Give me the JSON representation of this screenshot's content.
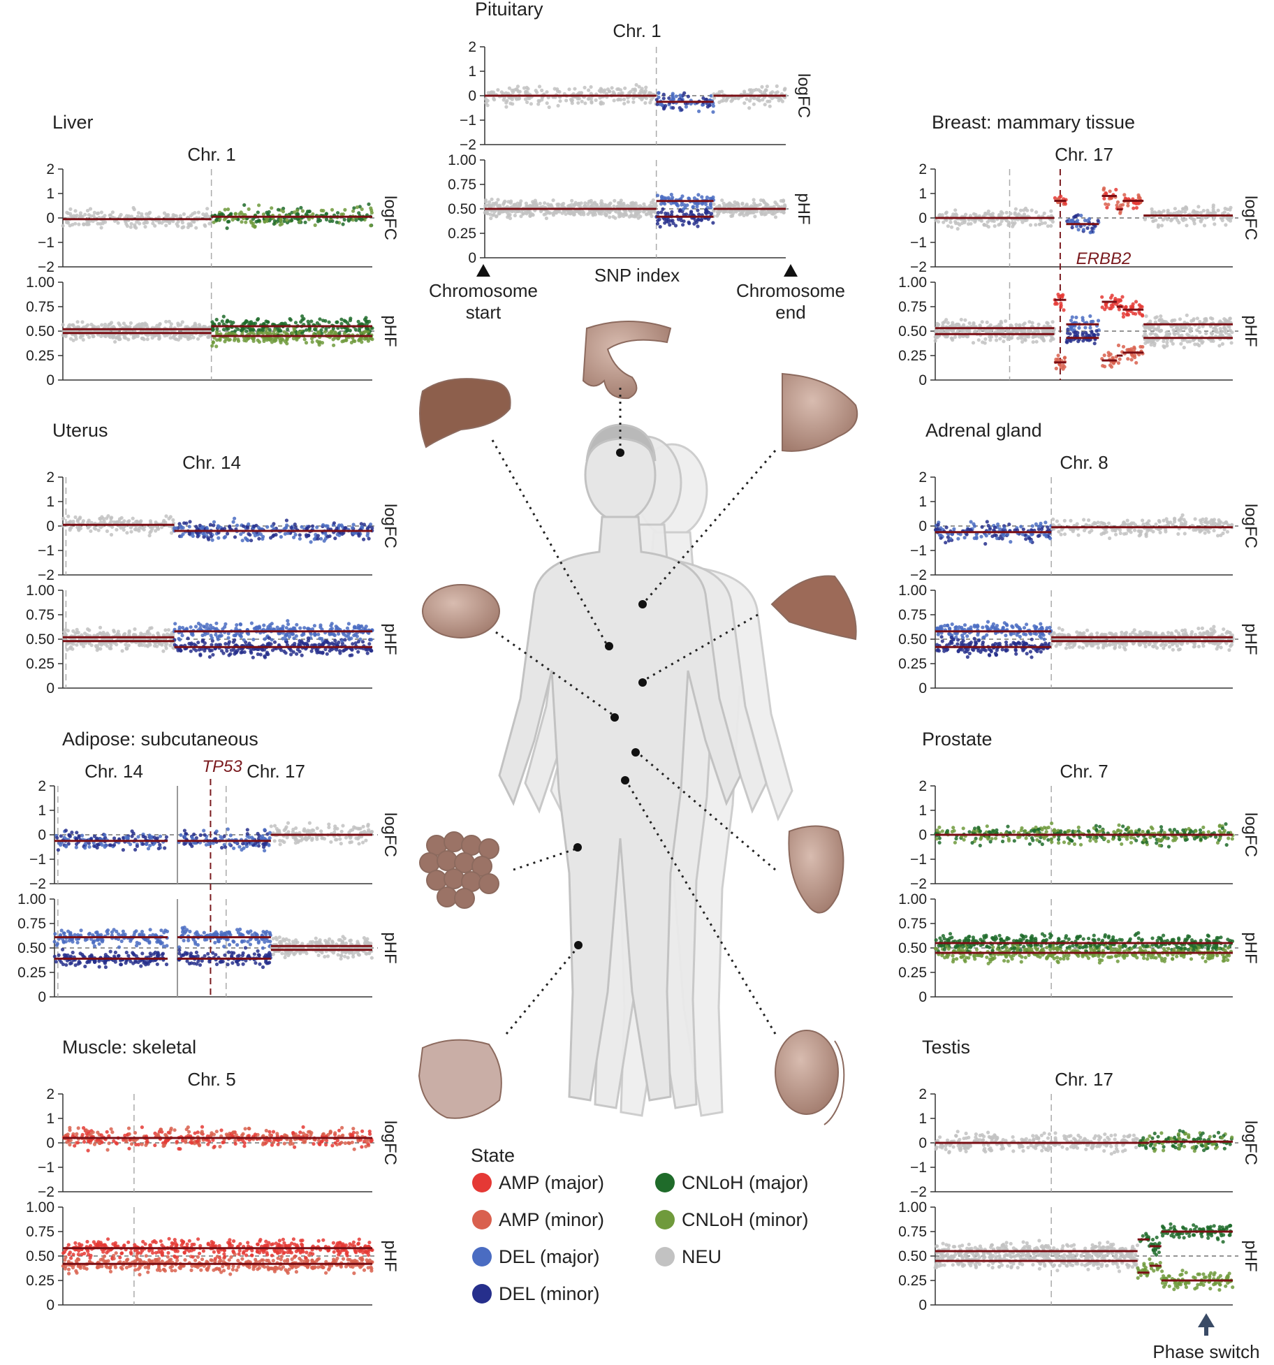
{
  "colors": {
    "AMP_major": "#e53935",
    "AMP_minor": "#d9604e",
    "DEL_major": "#4a6cc2",
    "DEL_minor": "#262f8c",
    "CNLoH_major": "#1f6b2a",
    "CNLoH_minor": "#6f9a3c",
    "NEU": "#c2c2c2",
    "segment": "#7a0e14",
    "gene": "#7a1a1e"
  },
  "legend": {
    "title": "State",
    "items": [
      {
        "label": "AMP (major)",
        "color": "#e53935"
      },
      {
        "label": "CNLoH (major)",
        "color": "#1f6b2a"
      },
      {
        "label": "AMP (minor)",
        "color": "#d9604e"
      },
      {
        "label": "CNLoH (minor)",
        "color": "#6f9a3c"
      },
      {
        "label": "DEL (major)",
        "color": "#4a6cc2"
      },
      {
        "label": "NEU",
        "color": "#c2c2c2"
      },
      {
        "label": "DEL (minor)",
        "color": "#262f8c"
      }
    ]
  },
  "annotations": {
    "snp_index": "SNP index",
    "chromosome_start": "Chromosome start",
    "chromosome_end": "Chromosome end",
    "phase_switch": "Phase switch"
  },
  "axes": {
    "logfc_label": "logFC",
    "phf_label": "pHF",
    "logfc_ticks": [
      "2",
      "1",
      "0",
      "−1",
      "−2"
    ],
    "phf_ticks": [
      "1.00",
      "0.75",
      "0.50",
      "0.25",
      "0"
    ]
  },
  "chart_data": [
    {
      "type": "scatter",
      "title": "Pituitary",
      "chromosomes": [
        "Chr. 1"
      ],
      "segments": [
        {
          "state": "NEU",
          "start": 0,
          "end": 0.57,
          "logFC": 0,
          "pHF": [
            0.5,
            0.5
          ]
        },
        {
          "state": "DEL",
          "start": 0.57,
          "end": 0.76,
          "logFC": -0.25,
          "pHF": [
            0.58,
            0.42
          ]
        },
        {
          "state": "NEU",
          "start": 0.76,
          "end": 1,
          "logFC": 0,
          "pHF": [
            0.5,
            0.5
          ]
        }
      ]
    },
    {
      "type": "scatter",
      "title": "Liver",
      "chromosomes": [
        "Chr. 1"
      ],
      "segments": [
        {
          "state": "NEU",
          "start": 0,
          "end": 0.48,
          "logFC": -0.05,
          "pHF": [
            0.52,
            0.48
          ]
        },
        {
          "state": "CNLoH",
          "start": 0.48,
          "end": 1,
          "logFC": 0.05,
          "pHF": [
            0.55,
            0.45
          ]
        }
      ]
    },
    {
      "type": "scatter",
      "title": "Breast: mammary tissue",
      "chromosomes": [
        "Chr. 17"
      ],
      "gene": "ERBB2",
      "segments": [
        {
          "state": "NEU",
          "start": 0,
          "end": 0.4,
          "logFC": 0,
          "pHF": [
            0.53,
            0.47
          ]
        },
        {
          "state": "AMP",
          "start": 0.4,
          "end": 0.44,
          "logFC": 0.7,
          "pHF": [
            0.82,
            0.18
          ]
        },
        {
          "state": "DEL",
          "start": 0.44,
          "end": 0.55,
          "logFC": -0.25,
          "pHF": [
            0.57,
            0.43
          ]
        },
        {
          "state": "AMP",
          "start": 0.56,
          "end": 0.61,
          "logFC": 0.9,
          "pHF": [
            0.8,
            0.2
          ]
        },
        {
          "state": "AMP",
          "start": 0.61,
          "end": 0.63,
          "logFC": 0.35,
          "pHF": [
            0.75,
            0.25
          ]
        },
        {
          "state": "AMP",
          "start": 0.63,
          "end": 0.7,
          "logFC": 0.7,
          "pHF": [
            0.72,
            0.28
          ]
        },
        {
          "state": "NEU",
          "start": 0.7,
          "end": 1,
          "logFC": 0.1,
          "pHF": [
            0.57,
            0.43
          ]
        }
      ]
    },
    {
      "type": "scatter",
      "title": "Uterus",
      "chromosomes": [
        "Chr. 14"
      ],
      "segments": [
        {
          "state": "NEU",
          "start": 0,
          "end": 0.36,
          "logFC": 0.05,
          "pHF": [
            0.52,
            0.48
          ]
        },
        {
          "state": "DEL",
          "start": 0.36,
          "end": 1,
          "logFC": -0.2,
          "pHF": [
            0.58,
            0.42
          ]
        }
      ]
    },
    {
      "type": "scatter",
      "title": "Adrenal gland",
      "chromosomes": [
        "Chr. 8"
      ],
      "segments": [
        {
          "state": "DEL",
          "start": 0,
          "end": 0.39,
          "logFC": -0.25,
          "pHF": [
            0.58,
            0.42
          ]
        },
        {
          "state": "NEU",
          "start": 0.39,
          "end": 1,
          "logFC": -0.05,
          "pHF": [
            0.52,
            0.48
          ]
        }
      ]
    },
    {
      "type": "scatter",
      "title": "Adipose: subcutaneous",
      "chromosomes": [
        "Chr. 14",
        "Chr. 17"
      ],
      "gene": "TP53",
      "segments": [
        {
          "state": "DEL",
          "chromosome": "Chr. 14",
          "start": 0,
          "end": 1,
          "logFC": -0.25,
          "pHF": [
            0.61,
            0.39
          ]
        },
        {
          "state": "DEL",
          "chromosome": "Chr. 17",
          "start": 0,
          "end": 0.48,
          "logFC": -0.25,
          "pHF": [
            0.61,
            0.39
          ]
        },
        {
          "state": "NEU",
          "chromosome": "Chr. 17",
          "start": 0.48,
          "end": 1,
          "logFC": 0,
          "pHF": [
            0.52,
            0.48
          ]
        }
      ]
    },
    {
      "type": "scatter",
      "title": "Prostate",
      "chromosomes": [
        "Chr. 7"
      ],
      "segments": [
        {
          "state": "CNLoH",
          "start": 0,
          "end": 1,
          "logFC": 0,
          "pHF": [
            0.55,
            0.45
          ]
        }
      ]
    },
    {
      "type": "scatter",
      "title": "Muscle: skeletal",
      "chromosomes": [
        "Chr. 5"
      ],
      "segments": [
        {
          "state": "AMP",
          "start": 0,
          "end": 1,
          "logFC": 0.2,
          "pHF": [
            0.58,
            0.42
          ]
        }
      ]
    },
    {
      "type": "scatter",
      "title": "Testis",
      "chromosomes": [
        "Chr. 17"
      ],
      "segments": [
        {
          "state": "NEU",
          "start": 0,
          "end": 0.68,
          "logFC": 0,
          "pHF": [
            0.55,
            0.45
          ]
        },
        {
          "state": "CNLoH",
          "start": 0.68,
          "end": 0.72,
          "logFC": 0,
          "pHF": [
            0.67,
            0.33
          ]
        },
        {
          "state": "CNLoH",
          "start": 0.72,
          "end": 0.76,
          "logFC": 0.05,
          "pHF": [
            0.6,
            0.4
          ]
        },
        {
          "state": "CNLoH",
          "start": 0.76,
          "end": 1,
          "logFC": 0.05,
          "pHF": [
            0.75,
            0.25
          ]
        }
      ]
    }
  ]
}
